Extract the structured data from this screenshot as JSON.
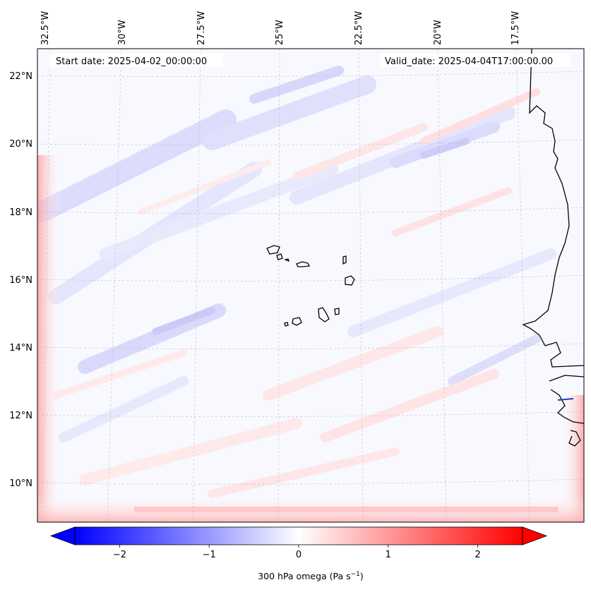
{
  "header": {
    "start_date": "Start date: 2025-04-02_00:00:00",
    "valid_date": "Valid_date: 2025-04-04T17:00:00.00"
  },
  "map": {
    "lon_labels": [
      "32.5°W",
      "30°W",
      "27.5°W",
      "25°W",
      "22.5°W",
      "20°W",
      "17.5°W"
    ],
    "lat_labels": [
      "22°N",
      "20°N",
      "18°N",
      "16°N",
      "14°N",
      "12°N",
      "10°N"
    ],
    "gridlines": "dashed",
    "coastlines": true
  },
  "colorbar": {
    "label_prefix": "300 hPa omega (Pa s",
    "label_exp": "−1",
    "label_suffix": ")",
    "ticks": [
      "−2",
      "−1",
      "0",
      "1",
      "2"
    ],
    "tick_values": [
      -2,
      -1,
      0,
      1,
      2
    ],
    "range": [
      -2.5,
      2.5
    ],
    "extend": "both",
    "colormap": "bwr",
    "min_color": "#0000ff",
    "mid_color": "#ffffff",
    "max_color": "#ff0000"
  }
}
